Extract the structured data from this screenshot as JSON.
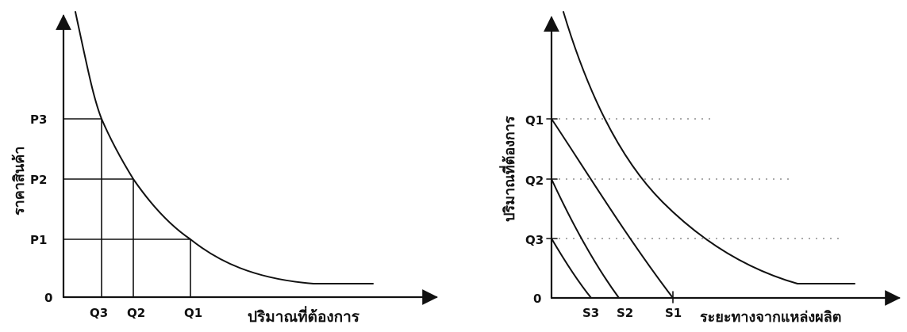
{
  "left_diagram": {
    "y_axis_label": "ราคาสินค้า",
    "x_axis_label": "ปริมาณที่ต้องการ",
    "origin_label": "0",
    "price_labels": [
      "P3",
      "P2",
      "P1"
    ],
    "quantity_labels": [
      "Q3",
      "Q2",
      "Q1"
    ]
  },
  "right_diagram": {
    "y_axis_label": "ปริมาณที่ต้องการ",
    "x_axis_label": "ระยะทางจากแหล่งผลิต",
    "origin_label": "0",
    "quantity_labels": [
      "Q1",
      "Q2",
      "Q3"
    ],
    "distance_labels": [
      "S3",
      "S2",
      "S1"
    ]
  },
  "colors": {
    "ink": "#111111",
    "background": "#ffffff"
  }
}
